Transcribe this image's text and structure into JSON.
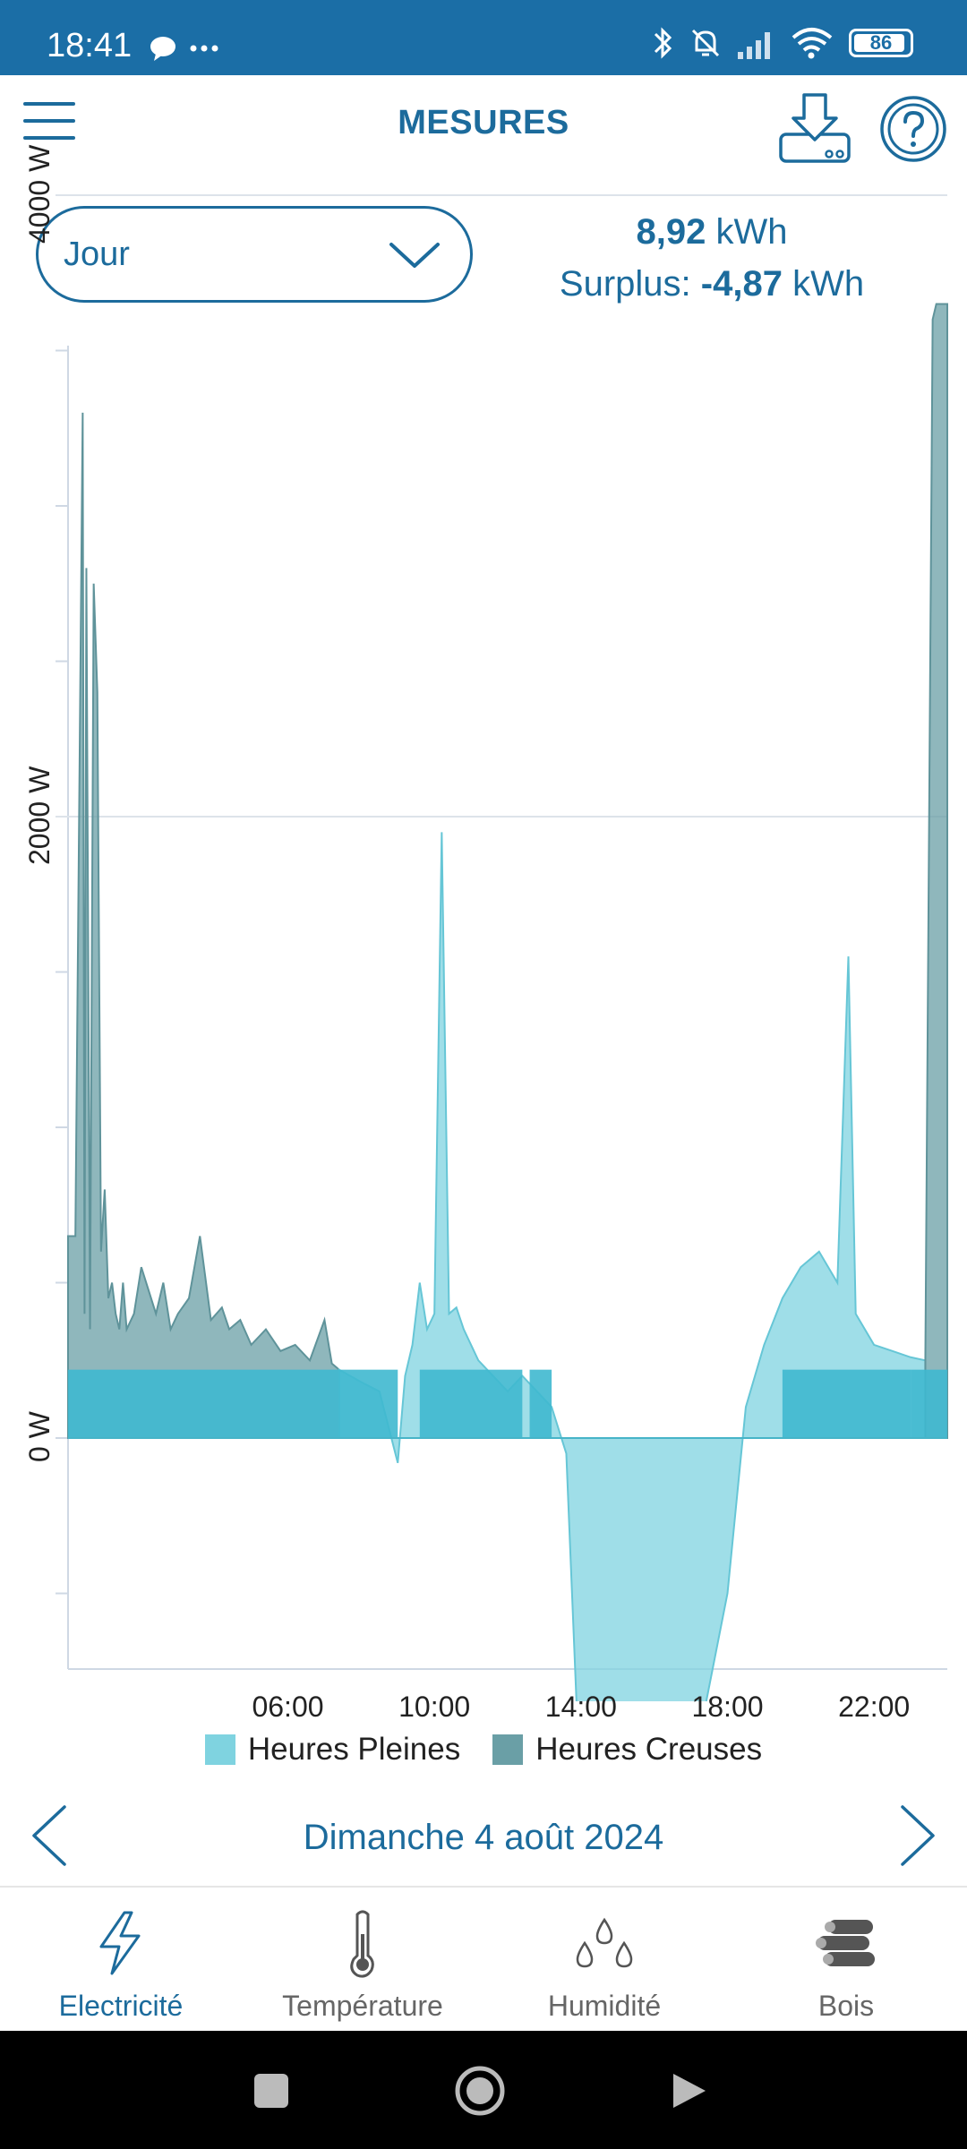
{
  "status_bar": {
    "time": "18:41",
    "battery": "86",
    "icons": [
      "chat-icon",
      "more-icon",
      "bluetooth-icon",
      "mute-icon",
      "signal-icon",
      "wifi-icon",
      "battery-icon"
    ]
  },
  "header": {
    "title": "MESURES",
    "icons": [
      "menu-icon",
      "download-icon",
      "help-icon"
    ]
  },
  "period_select": {
    "value": "Jour"
  },
  "summary": {
    "consumption_value": "8,92",
    "consumption_unit": "kWh",
    "surplus_label": "Surplus:",
    "surplus_value": "-4,87",
    "surplus_unit": "kWh"
  },
  "chart_data": {
    "type": "area",
    "ylabel_ticks": [
      "0 W",
      "2000 W",
      "4000 W"
    ],
    "ylim": [
      -1500,
      7000
    ],
    "xlim": [
      0,
      24
    ],
    "x_tick_labels": [
      "06:00",
      "10:00",
      "14:00",
      "18:00",
      "22:00"
    ],
    "x_tick_hours": [
      6,
      10,
      14,
      18,
      22
    ],
    "grid": true,
    "legend": "bottom",
    "colors": {
      "heures_pleines": "#7fd3e0",
      "heures_creuses": "#6a9fa6",
      "base_band": "#3fb8cf"
    },
    "series": [
      {
        "name": "Heures Creuses",
        "x": [
          0,
          0.2,
          0.4,
          0.45,
          0.5,
          0.6,
          0.7,
          0.8,
          0.9,
          1.0,
          1.1,
          1.2,
          1.3,
          1.4,
          1.5,
          1.6,
          1.8,
          2.0,
          2.4,
          2.6,
          2.8,
          3.0,
          3.3,
          3.6,
          3.9,
          4.2,
          4.4,
          4.7,
          5.0,
          5.4,
          5.8,
          6.2,
          6.6,
          7.0,
          7.2,
          7.4
        ],
        "values": [
          650,
          650,
          3300,
          400,
          2800,
          350,
          2750,
          2400,
          600,
          800,
          450,
          500,
          400,
          350,
          500,
          350,
          400,
          550,
          400,
          500,
          350,
          400,
          450,
          650,
          380,
          420,
          350,
          380,
          300,
          350,
          280,
          300,
          250,
          380,
          240,
          220
        ]
      },
      {
        "name": "Heures Pleines",
        "x": [
          7.4,
          8,
          8.5,
          9,
          9.2,
          9.4,
          9.6,
          9.8,
          10.0,
          10.2,
          10.4,
          10.6,
          10.8,
          11.2,
          11.6,
          12.0,
          12.4,
          12.8,
          13.2,
          13.6,
          14.0,
          14.5,
          15.0,
          15.5,
          16.0,
          16.5,
          17.0,
          17.5,
          18.0,
          18.5,
          19.0,
          19.5,
          20.0,
          20.5,
          21.0,
          21.3,
          21.5,
          22.0,
          22.5,
          23.0,
          23.4
        ],
        "values": [
          220,
          180,
          150,
          -80,
          200,
          300,
          500,
          350,
          400,
          1950,
          400,
          420,
          350,
          250,
          200,
          150,
          200,
          150,
          100,
          -50,
          -1200,
          -1300,
          -1150,
          -1050,
          -1350,
          -1250,
          -1100,
          -800,
          -500,
          100,
          300,
          450,
          550,
          600,
          500,
          1550,
          400,
          300,
          280,
          260,
          250
        ]
      },
      {
        "name": "Heures Creuses",
        "x": [
          23.4,
          23.6,
          23.7,
          24
        ],
        "values": [
          250,
          3600,
          3650,
          3650
        ]
      }
    ]
  },
  "date_nav": {
    "label": "Dimanche 4 août 2024"
  },
  "tabs": [
    {
      "label": "Electricité",
      "icon": "lightning-icon",
      "active": true
    },
    {
      "label": "Température",
      "icon": "thermometer-icon",
      "active": false
    },
    {
      "label": "Humidité",
      "icon": "droplets-icon",
      "active": false
    },
    {
      "label": "Bois",
      "icon": "logs-icon",
      "active": false
    }
  ],
  "nav_bar": {
    "icons": [
      "recents-icon",
      "home-icon",
      "back-icon"
    ]
  }
}
